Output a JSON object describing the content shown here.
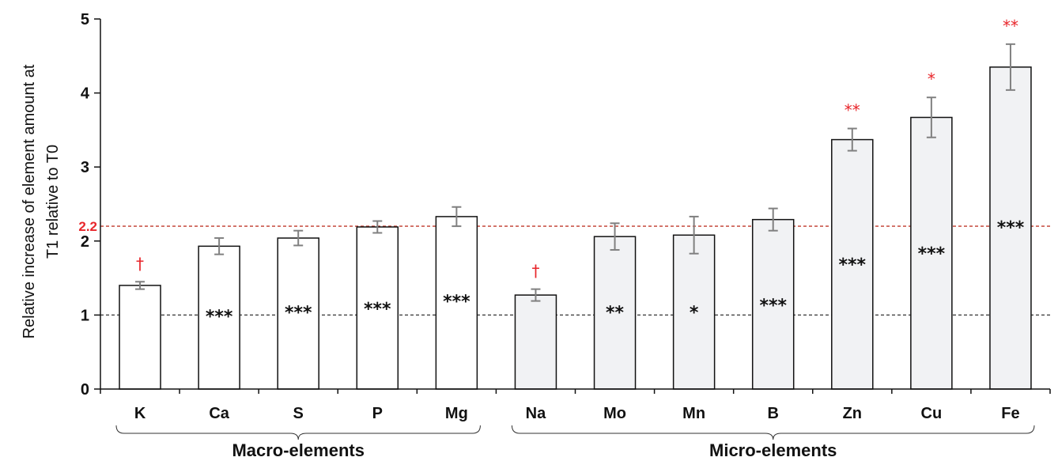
{
  "chart_data": {
    "type": "bar",
    "ylabel_lines": [
      "Relative increase of element amount at",
      "T1 relative to T0"
    ],
    "ylim": [
      0,
      5
    ],
    "yticks": [
      "0",
      "1",
      "2",
      "3",
      "4",
      "5"
    ],
    "reference_lines": [
      {
        "value": 1,
        "color": "#333333",
        "label": ""
      },
      {
        "value": 2.2,
        "color": "#c0392b",
        "label": "2.2"
      }
    ],
    "categories": [
      "K",
      "Ca",
      "S",
      "P",
      "Mg",
      "Na",
      "Mo",
      "Mn",
      "B",
      "Zn",
      "Cu",
      "Fe"
    ],
    "values": [
      1.4,
      1.93,
      2.04,
      2.19,
      2.33,
      1.27,
      2.06,
      2.08,
      2.29,
      3.37,
      3.67,
      4.35
    ],
    "errors": [
      0.05,
      0.11,
      0.1,
      0.08,
      0.13,
      0.08,
      0.18,
      0.25,
      0.15,
      0.15,
      0.27,
      0.31
    ],
    "bar_colors": [
      "#ffffff",
      "#ffffff",
      "#ffffff",
      "#ffffff",
      "#ffffff",
      "#f1f2f4",
      "#f1f2f4",
      "#f1f2f4",
      "#f1f2f4",
      "#f1f2f4",
      "#f1f2f4",
      "#f1f2f4"
    ],
    "sig_inside": [
      "",
      "***",
      "***",
      "***",
      "***",
      "",
      "**",
      "*",
      "***",
      "***",
      "***",
      "***"
    ],
    "sig_inside_y": [
      0,
      1.0,
      1.05,
      1.1,
      1.2,
      0,
      1.05,
      1.05,
      1.15,
      1.7,
      1.85,
      2.2
    ],
    "sig_above": [
      "†",
      "",
      "",
      "",
      "",
      "†",
      "",
      "",
      "",
      "**",
      "*",
      "**"
    ],
    "groups": [
      {
        "label": "Macro-elements",
        "start": 0,
        "end": 4
      },
      {
        "label": "Micro-elements",
        "start": 5,
        "end": 11
      }
    ]
  }
}
